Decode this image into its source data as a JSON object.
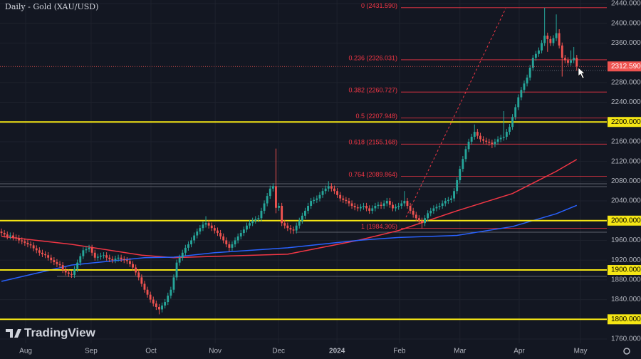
{
  "chart_data": {
    "type": "candlestick",
    "title": "Daily - Gold (XAU/USD)",
    "watermark": "TradingView",
    "up_color": "#26a69a",
    "down_color": "#ef5350",
    "xlim": [
      -0.5,
      207.3
    ],
    "xticks": [
      {
        "value": 8.3,
        "label": "Aug"
      },
      {
        "value": 30.7,
        "label": "Sep"
      },
      {
        "value": 51.2,
        "label": "Oct"
      },
      {
        "value": 73.2,
        "label": "Nov"
      },
      {
        "value": 94.9,
        "label": "Dec"
      },
      {
        "value": 114.9,
        "label": "2024"
      },
      {
        "value": 136.3,
        "label": "Feb"
      },
      {
        "value": 157,
        "label": "Mar"
      },
      {
        "value": 177.3,
        "label": "Apr"
      },
      {
        "value": 198.3,
        "label": "May"
      }
    ],
    "ylim": [
      1760,
      2440
    ],
    "yticks": [
      {
        "value": 2440,
        "label": "2440.000"
      },
      {
        "value": 2400,
        "label": "2400.000"
      },
      {
        "value": 2360,
        "label": "2360.000"
      },
      {
        "value": 2280,
        "label": "2280.000"
      },
      {
        "value": 2240,
        "label": "2240.000"
      },
      {
        "value": 2160,
        "label": "2160.000"
      },
      {
        "value": 2120,
        "label": "2120.000"
      },
      {
        "value": 2080,
        "label": "2080.000"
      },
      {
        "value": 2040,
        "label": "2040.000"
      },
      {
        "value": 1960,
        "label": "1960.000"
      },
      {
        "value": 1920,
        "label": "1920.000"
      },
      {
        "value": 1880,
        "label": "1880.000"
      },
      {
        "value": 1840,
        "label": "1840.000"
      },
      {
        "value": 1760,
        "label": "1760.000"
      }
    ],
    "grid": true,
    "candles": [
      [
        1978,
        1984,
        1969,
        1975
      ],
      [
        1975,
        1981,
        1966,
        1972
      ],
      [
        1972,
        1978,
        1962,
        1968
      ],
      [
        1968,
        1976,
        1962,
        1970
      ],
      [
        1970,
        1976,
        1960,
        1966
      ],
      [
        1966,
        1972,
        1959,
        1965
      ],
      [
        1965,
        1971,
        1954,
        1960
      ],
      [
        1960,
        1966,
        1952,
        1958
      ],
      [
        1958,
        1964,
        1949,
        1955
      ],
      [
        1955,
        1961,
        1946,
        1952
      ],
      [
        1952,
        1958,
        1944,
        1950
      ],
      [
        1950,
        1956,
        1938,
        1944
      ],
      [
        1944,
        1950,
        1934,
        1940
      ],
      [
        1940,
        1946,
        1929,
        1935
      ],
      [
        1935,
        1941,
        1926,
        1932
      ],
      [
        1932,
        1938,
        1924,
        1930
      ],
      [
        1930,
        1936,
        1919,
        1925
      ],
      [
        1925,
        1931,
        1914,
        1920
      ],
      [
        1920,
        1926,
        1910,
        1916
      ],
      [
        1916,
        1922,
        1906,
        1912
      ],
      [
        1912,
        1918,
        1904,
        1910
      ],
      [
        1910,
        1916,
        1894,
        1900
      ],
      [
        1900,
        1906,
        1889,
        1895
      ],
      [
        1895,
        1901,
        1886,
        1892
      ],
      [
        1892,
        1898,
        1884,
        1890
      ],
      [
        1890,
        1908,
        1884,
        1902
      ],
      [
        1902,
        1921,
        1896,
        1915
      ],
      [
        1915,
        1934,
        1909,
        1928
      ],
      [
        1928,
        1946,
        1922,
        1940
      ],
      [
        1940,
        1948,
        1934,
        1942
      ],
      [
        1942,
        1951,
        1936,
        1945
      ],
      [
        1945,
        1951,
        1929,
        1935
      ],
      [
        1935,
        1941,
        1919,
        1925
      ],
      [
        1925,
        1933,
        1919,
        1927
      ],
      [
        1927,
        1935,
        1921,
        1929
      ],
      [
        1929,
        1936,
        1923,
        1930
      ],
      [
        1930,
        1936,
        1919,
        1925
      ],
      [
        1925,
        1931,
        1916,
        1922
      ],
      [
        1922,
        1928,
        1914,
        1920
      ],
      [
        1920,
        1929,
        1914,
        1923
      ],
      [
        1923,
        1931,
        1917,
        1925
      ],
      [
        1925,
        1931,
        1916,
        1922
      ],
      [
        1922,
        1928,
        1914,
        1920
      ],
      [
        1920,
        1926,
        1912,
        1918
      ],
      [
        1918,
        1924,
        1906,
        1912
      ],
      [
        1912,
        1918,
        1899,
        1905
      ],
      [
        1905,
        1911,
        1889,
        1895
      ],
      [
        1895,
        1901,
        1879,
        1885
      ],
      [
        1885,
        1891,
        1866,
        1872
      ],
      [
        1872,
        1878,
        1854,
        1860
      ],
      [
        1860,
        1866,
        1844,
        1850
      ],
      [
        1850,
        1856,
        1834,
        1840
      ],
      [
        1840,
        1846,
        1826,
        1832
      ],
      [
        1832,
        1838,
        1819,
        1825
      ],
      [
        1825,
        1831,
        1810,
        1820
      ],
      [
        1820,
        1834,
        1814,
        1828
      ],
      [
        1828,
        1841,
        1822,
        1835
      ],
      [
        1835,
        1854,
        1829,
        1848
      ],
      [
        1848,
        1866,
        1842,
        1860
      ],
      [
        1860,
        1891,
        1854,
        1885
      ],
      [
        1885,
        1921,
        1879,
        1915
      ],
      [
        1915,
        1931,
        1909,
        1925
      ],
      [
        1925,
        1941,
        1919,
        1935
      ],
      [
        1935,
        1951,
        1929,
        1945
      ],
      [
        1945,
        1958,
        1939,
        1952
      ],
      [
        1952,
        1966,
        1946,
        1960
      ],
      [
        1960,
        1976,
        1954,
        1970
      ],
      [
        1970,
        1984,
        1964,
        1978
      ],
      [
        1978,
        1991,
        1972,
        1985
      ],
      [
        1985,
        1998,
        1979,
        1992
      ],
      [
        1992,
        2009,
        1986,
        1995
      ],
      [
        1995,
        2001,
        1984,
        1990
      ],
      [
        1990,
        1996,
        1979,
        1985
      ],
      [
        1985,
        1991,
        1974,
        1980
      ],
      [
        1980,
        1986,
        1969,
        1975
      ],
      [
        1975,
        1981,
        1962,
        1968
      ],
      [
        1968,
        1974,
        1954,
        1960
      ],
      [
        1960,
        1966,
        1946,
        1952
      ],
      [
        1952,
        1958,
        1937,
        1945
      ],
      [
        1945,
        1958,
        1939,
        1952
      ],
      [
        1952,
        1966,
        1946,
        1960
      ],
      [
        1960,
        1974,
        1954,
        1968
      ],
      [
        1968,
        1981,
        1962,
        1975
      ],
      [
        1975,
        1988,
        1969,
        1982
      ],
      [
        1982,
        1996,
        1976,
        1990
      ],
      [
        1990,
        2001,
        1984,
        1995
      ],
      [
        1995,
        2006,
        1989,
        2000
      ],
      [
        2000,
        2009,
        1994,
        2003
      ],
      [
        2003,
        2011,
        1997,
        2005
      ],
      [
        2005,
        2026,
        1999,
        2020
      ],
      [
        2020,
        2041,
        2014,
        2035
      ],
      [
        2035,
        2056,
        2029,
        2050
      ],
      [
        2050,
        2071,
        2044,
        2065
      ],
      [
        2065,
        2076,
        2059,
        2070
      ],
      [
        2070,
        2146,
        2015,
        2026
      ],
      [
        2026,
        2036,
        2020,
        2030
      ],
      [
        2030,
        2036,
        1989,
        1995
      ],
      [
        1995,
        2001,
        1984,
        1990
      ],
      [
        1990,
        1996,
        1979,
        1985
      ],
      [
        1985,
        1991,
        1974,
        1982
      ],
      [
        1982,
        1988,
        1973,
        1980
      ],
      [
        1980,
        1996,
        1974,
        1990
      ],
      [
        1990,
        2006,
        1984,
        2000
      ],
      [
        2000,
        2016,
        1994,
        2010
      ],
      [
        2010,
        2026,
        2004,
        2020
      ],
      [
        2020,
        2036,
        2014,
        2030
      ],
      [
        2030,
        2046,
        2024,
        2040
      ],
      [
        2040,
        2048,
        2034,
        2042
      ],
      [
        2042,
        2051,
        2036,
        2045
      ],
      [
        2045,
        2058,
        2039,
        2052
      ],
      [
        2052,
        2066,
        2046,
        2060
      ],
      [
        2060,
        2071,
        2054,
        2065
      ],
      [
        2065,
        2080,
        2059,
        2070
      ],
      [
        2070,
        2076,
        2059,
        2065
      ],
      [
        2065,
        2071,
        2054,
        2060
      ],
      [
        2060,
        2066,
        2046,
        2052
      ],
      [
        2052,
        2058,
        2039,
        2045
      ],
      [
        2045,
        2051,
        2036,
        2042
      ],
      [
        2042,
        2048,
        2034,
        2040
      ],
      [
        2040,
        2046,
        2029,
        2035
      ],
      [
        2035,
        2041,
        2024,
        2030
      ],
      [
        2030,
        2036,
        2021,
        2027
      ],
      [
        2027,
        2033,
        2019,
        2025
      ],
      [
        2025,
        2034,
        2019,
        2028
      ],
      [
        2028,
        2036,
        2022,
        2030
      ],
      [
        2030,
        2036,
        2019,
        2025
      ],
      [
        2025,
        2031,
        2014,
        2020
      ],
      [
        2020,
        2031,
        2014,
        2025
      ],
      [
        2025,
        2036,
        2019,
        2030
      ],
      [
        2030,
        2038,
        2024,
        2032
      ],
      [
        2032,
        2038,
        2024,
        2030
      ],
      [
        2030,
        2041,
        2024,
        2035
      ],
      [
        2035,
        2046,
        2029,
        2040
      ],
      [
        2040,
        2046,
        2026,
        2032
      ],
      [
        2032,
        2038,
        2019,
        2025
      ],
      [
        2025,
        2034,
        2019,
        2028
      ],
      [
        2028,
        2036,
        2022,
        2030
      ],
      [
        2030,
        2041,
        2024,
        2035
      ],
      [
        2035,
        2060,
        2029,
        2040
      ],
      [
        2040,
        2046,
        2024,
        2030
      ],
      [
        2030,
        2036,
        2014,
        2020
      ],
      [
        2020,
        2026,
        2006,
        2012
      ],
      [
        2012,
        2018,
        1999,
        2005
      ],
      [
        2005,
        2011,
        1994,
        2000
      ],
      [
        2000,
        2006,
        1984,
        1995
      ],
      [
        1995,
        2011,
        1989,
        2005
      ],
      [
        2005,
        2021,
        1999,
        2015
      ],
      [
        2015,
        2026,
        2009,
        2020
      ],
      [
        2020,
        2031,
        2014,
        2025
      ],
      [
        2025,
        2034,
        2019,
        2028
      ],
      [
        2028,
        2036,
        2022,
        2030
      ],
      [
        2030,
        2041,
        2024,
        2035
      ],
      [
        2035,
        2046,
        2029,
        2040
      ],
      [
        2040,
        2048,
        2034,
        2042
      ],
      [
        2042,
        2051,
        2036,
        2045
      ],
      [
        2045,
        2066,
        2039,
        2060
      ],
      [
        2060,
        2088,
        2054,
        2082
      ],
      [
        2082,
        2111,
        2076,
        2105
      ],
      [
        2105,
        2131,
        2099,
        2125
      ],
      [
        2125,
        2151,
        2119,
        2145
      ],
      [
        2145,
        2166,
        2139,
        2160
      ],
      [
        2160,
        2176,
        2154,
        2170
      ],
      [
        2170,
        2195,
        2164,
        2180
      ],
      [
        2180,
        2186,
        2166,
        2172
      ],
      [
        2172,
        2178,
        2159,
        2165
      ],
      [
        2165,
        2171,
        2156,
        2162
      ],
      [
        2162,
        2168,
        2154,
        2160
      ],
      [
        2160,
        2166,
        2152,
        2158
      ],
      [
        2158,
        2164,
        2147,
        2155
      ],
      [
        2155,
        2166,
        2149,
        2160
      ],
      [
        2160,
        2171,
        2154,
        2165
      ],
      [
        2165,
        2174,
        2159,
        2168
      ],
      [
        2168,
        2222,
        2162,
        2170
      ],
      [
        2170,
        2186,
        2164,
        2180
      ],
      [
        2180,
        2196,
        2174,
        2190
      ],
      [
        2190,
        2216,
        2184,
        2210
      ],
      [
        2210,
        2236,
        2204,
        2230
      ],
      [
        2230,
        2256,
        2224,
        2250
      ],
      [
        2250,
        2271,
        2244,
        2265
      ],
      [
        2265,
        2284,
        2259,
        2278
      ],
      [
        2278,
        2296,
        2272,
        2290
      ],
      [
        2290,
        2316,
        2284,
        2310
      ],
      [
        2310,
        2336,
        2304,
        2330
      ],
      [
        2330,
        2344,
        2324,
        2338
      ],
      [
        2338,
        2351,
        2332,
        2345
      ],
      [
        2345,
        2366,
        2339,
        2360
      ],
      [
        2360,
        2431.59,
        2354,
        2375
      ],
      [
        2375,
        2381,
        2342,
        2368
      ],
      [
        2368,
        2374,
        2354,
        2360
      ],
      [
        2360,
        2376,
        2354,
        2370
      ],
      [
        2370,
        2418,
        2364,
        2380
      ],
      [
        2380,
        2388,
        2349,
        2355
      ],
      [
        2355,
        2361,
        2292,
        2330
      ],
      [
        2330,
        2336,
        2319,
        2325
      ],
      [
        2325,
        2331,
        2314,
        2320
      ],
      [
        2320,
        2345,
        2314,
        2325
      ],
      [
        2325,
        2352,
        2319,
        2330
      ],
      [
        2330,
        2336,
        2304,
        2312.59
      ]
    ],
    "lines": [
      {
        "color": "#f23645",
        "x": [
          0,
          24,
          48,
          59,
          98,
          122,
          136,
          156,
          175,
          190,
          197
        ],
        "values": [
          1968,
          1952,
          1930,
          1925,
          1932,
          1960,
          1980,
          2020,
          2055,
          2100,
          2124
        ]
      },
      {
        "color": "#2962ff",
        "x": [
          0,
          24,
          49,
          59,
          73,
          98,
          122,
          136,
          156,
          175,
          190,
          197
        ],
        "values": [
          1877,
          1910,
          1925,
          1926,
          1935,
          1945,
          1960,
          1966,
          1970,
          1988,
          2014,
          2031
        ]
      }
    ],
    "levels_color": "#f5e614",
    "levels": [
      {
        "value": 2200,
        "label": "2200.000"
      },
      {
        "value": 2000,
        "label": "2000.000"
      },
      {
        "value": 1900,
        "label": "1900.000"
      },
      {
        "value": 1800,
        "label": "1800.000"
      }
    ],
    "fib_color": "#f23645",
    "fib_levels": [
      {
        "value": 2431.59,
        "label": "0 (2431.590)"
      },
      {
        "value": 2326.031,
        "label": "0.236 (2326.031)"
      },
      {
        "value": 2260.727,
        "label": "0.382 (2260.727)"
      },
      {
        "value": 2207.948,
        "label": "0.5 (2207.948)"
      },
      {
        "value": 2155.168,
        "label": "0.618 (2155.168)"
      },
      {
        "value": 2089.864,
        "label": "0.764 (2089.864)"
      },
      {
        "value": 1984.305,
        "label": "1 (1984.305)"
      }
    ],
    "last_price": {
      "value": 2312.59,
      "label": "2312.590"
    }
  }
}
